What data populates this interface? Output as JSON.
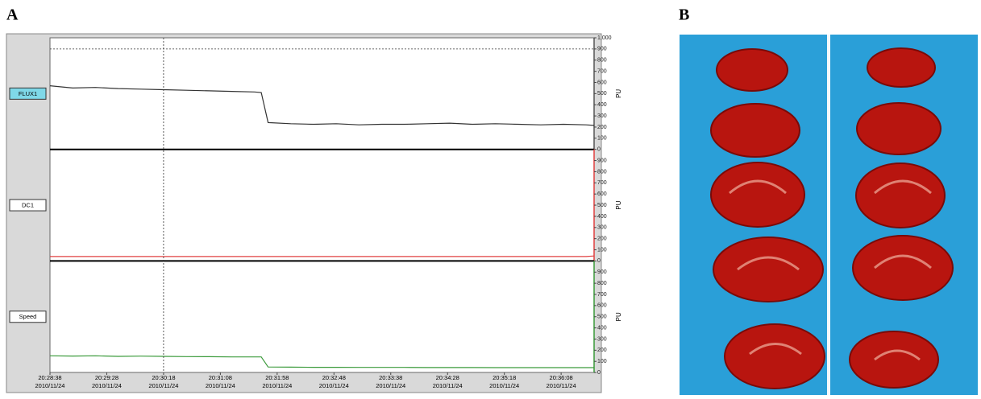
{
  "panel_labels": [
    "A",
    "B"
  ],
  "chart_data": {
    "type": "line",
    "x": [
      "20:28:38",
      "20:28:58",
      "20:29:18",
      "20:29:38",
      "20:29:58",
      "20:30:18",
      "20:30:38",
      "20:30:58",
      "20:31:18",
      "20:31:38",
      "20:31:44",
      "20:31:50",
      "20:32:10",
      "20:32:30",
      "20:32:50",
      "20:33:10",
      "20:33:30",
      "20:33:50",
      "20:34:10",
      "20:34:30",
      "20:34:50",
      "20:35:10",
      "20:35:30",
      "20:35:50",
      "20:36:10",
      "20:36:30",
      "20:36:37"
    ],
    "xlim": [
      "20:28:38",
      "20:36:37"
    ],
    "xticks": [
      "20:28:38",
      "20:29:28",
      "20:30:18",
      "20:31:08",
      "20:31:58",
      "20:32:48",
      "20:33:38",
      "20:34:28",
      "20:35:18",
      "20:36:08"
    ],
    "xtick_dates": [
      "2010/11/24",
      "2010/11/24",
      "2010/11/24",
      "2010/11/24",
      "2010/11/24",
      "2010/11/24",
      "2010/11/24",
      "2010/11/24",
      "2010/11/24",
      "2010/11/24"
    ],
    "marker_x": "20:30:18",
    "ylim": [
      0,
      1000
    ],
    "y_label": "PU",
    "series": [
      {
        "name": "FLUX1",
        "color": "#333333",
        "axis_color": "#555555",
        "marker_y": 900,
        "yticks": [
          0,
          100,
          200,
          300,
          400,
          500,
          600,
          700,
          800,
          900,
          {
            "value": 1000,
            "label": "1,000"
          }
        ],
        "values": [
          570,
          550,
          555,
          545,
          540,
          535,
          530,
          525,
          520,
          515,
          510,
          240,
          230,
          225,
          230,
          220,
          225,
          225,
          230,
          235,
          225,
          230,
          225,
          220,
          225,
          220,
          215
        ]
      },
      {
        "name": "DC1",
        "color": "#e04040",
        "axis_color": "#e04040",
        "yticks": [
          0,
          100,
          200,
          300,
          400,
          500,
          600,
          700,
          800,
          900
        ],
        "values": [
          40,
          40,
          40,
          40,
          40,
          40,
          40,
          40,
          40,
          40,
          40,
          40,
          40,
          40,
          40,
          40,
          40,
          40,
          40,
          40,
          40,
          40,
          40,
          40,
          40,
          40,
          45
        ]
      },
      {
        "name": "Speed",
        "color": "#3a9a3a",
        "axis_color": "#3a9a3a",
        "yticks": [
          0,
          100,
          200,
          300,
          400,
          500,
          600,
          700,
          800,
          900
        ],
        "values": [
          150,
          148,
          150,
          145,
          147,
          145,
          143,
          142,
          140,
          140,
          140,
          50,
          48,
          47,
          47,
          46,
          46,
          46,
          45,
          45,
          45,
          44,
          44,
          44,
          44,
          44,
          44
        ]
      }
    ]
  }
}
